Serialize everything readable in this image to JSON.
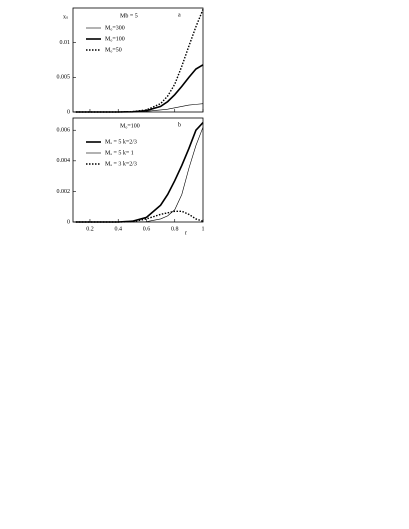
{
  "chart_data": [
    {
      "type": "line",
      "y_label": "xₛ",
      "annotation": "Mb = 5",
      "panel": "a",
      "x": [
        0.1,
        0.2,
        0.3,
        0.4,
        0.5,
        0.6,
        0.7,
        0.75,
        0.8,
        0.85,
        0.9,
        0.95,
        1
      ],
      "xlim": [
        0.08,
        1
      ],
      "ylim": [
        0,
        0.015
      ],
      "yticks": [
        0,
        0.005,
        0.01
      ],
      "series": [
        {
          "name": "M₀=300",
          "color": "#000000",
          "style": "thin",
          "values": [
            0,
            0,
            0,
            0,
            1e-05,
            0.0001,
            0.0003,
            0.0004,
            0.0006,
            0.0008,
            0.001,
            0.0011,
            0.0012
          ]
        },
        {
          "name": "M₀=100",
          "color": "#000000",
          "style": "thick",
          "values": [
            0,
            0,
            0,
            0,
            3e-05,
            0.0002,
            0.0008,
            0.0015,
            0.0025,
            0.0037,
            0.005,
            0.0062,
            0.0068
          ]
        },
        {
          "name": "M₀=50",
          "color": "#000000",
          "style": "dotted",
          "values": [
            0,
            0,
            0,
            0,
            5e-05,
            0.0003,
            0.0012,
            0.0023,
            0.004,
            0.0066,
            0.0095,
            0.0123,
            0.0148
          ]
        }
      ]
    },
    {
      "type": "line",
      "x_label": "r",
      "annotation": "M₀=100",
      "panel": "b",
      "x": [
        0.1,
        0.2,
        0.3,
        0.4,
        0.5,
        0.6,
        0.7,
        0.75,
        0.8,
        0.85,
        0.9,
        0.95,
        1
      ],
      "xlim": [
        0.08,
        1
      ],
      "xticks": [
        0.2,
        0.4,
        0.6,
        0.8,
        1
      ],
      "ylim": [
        0,
        0.0068
      ],
      "yticks": [
        0,
        0.002,
        0.004,
        0.006
      ],
      "series": [
        {
          "name": "Mₐ = 5  k=2/3",
          "color": "#000000",
          "style": "thick",
          "values": [
            0,
            0,
            0,
            0,
            5e-05,
            0.0003,
            0.0011,
            0.0018,
            0.0027,
            0.0037,
            0.0048,
            0.006,
            0.0065
          ]
        },
        {
          "name": "Mₐ = 5  k= 1",
          "color": "#000000",
          "style": "thin",
          "values": [
            0,
            0,
            0,
            0,
            0,
            2e-05,
            0.0002,
            0.0004,
            0.0008,
            0.0018,
            0.0035,
            0.005,
            0.0062
          ]
        },
        {
          "name": "Mₐ = 3  k=2/3",
          "color": "#000000",
          "style": "dotted",
          "values": [
            0,
            0,
            0,
            0,
            2e-05,
            0.0002,
            0.0005,
            0.0006,
            0.0007,
            0.0007,
            0.0005,
            0.0002,
            5e-05
          ]
        }
      ]
    }
  ]
}
